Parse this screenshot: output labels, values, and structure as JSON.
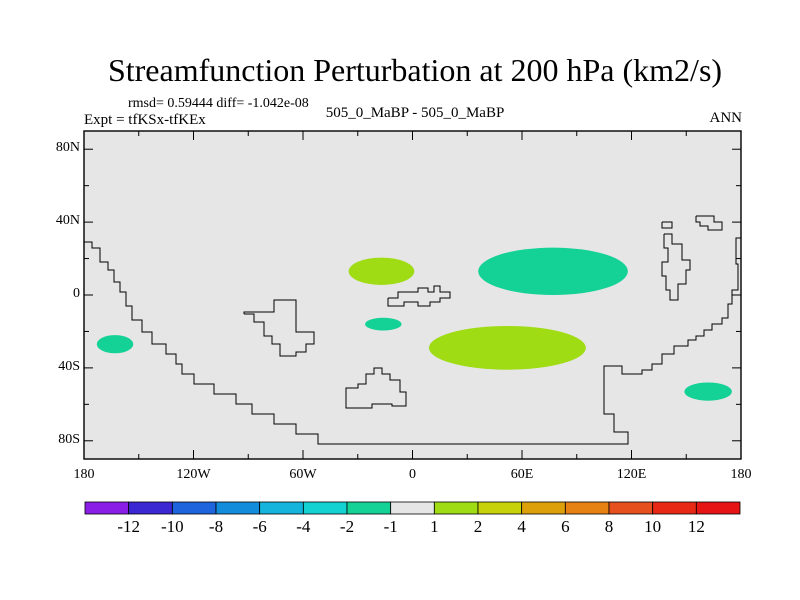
{
  "chart_data": {
    "type": "contour-map",
    "title": "Streamfunction Perturbation at 200 hPa (km2/s)",
    "stats_text": "rmsd= 0.59444 diff= -1.042e-08",
    "experiment_text": "Expt = tfKSx-tfKEx",
    "case_text": "505_0_MaBP - 505_0_MaBP",
    "season": "ANN",
    "x_axis": {
      "range": [
        -180,
        180
      ],
      "ticks": [
        -180,
        -120,
        -60,
        0,
        60,
        120,
        180
      ],
      "labels": [
        "180",
        "120W",
        "60W",
        "0",
        "60E",
        "120E",
        "180"
      ]
    },
    "y_axis": {
      "range": [
        -90,
        90
      ],
      "ticks": [
        -80,
        -40,
        0,
        40,
        80
      ],
      "labels": [
        "80S",
        "40S",
        "0",
        "40N",
        "80N"
      ]
    },
    "background_color": "#e6e6e6",
    "colorbar": {
      "levels": [
        "-12",
        "-10",
        "-8",
        "-6",
        "-4",
        "-2",
        "-1",
        "1",
        "2",
        "4",
        "6",
        "8",
        "10",
        "12"
      ],
      "colors": [
        "#8a1ee6",
        "#3c28d2",
        "#1e64dc",
        "#148cdc",
        "#14b4dc",
        "#14d2d2",
        "#14d296",
        "#e6e6e6",
        "#a0dc14",
        "#c8d20a",
        "#dca00a",
        "#e68214",
        "#e6501e",
        "#e62814",
        "#e61414"
      ]
    },
    "anomaly_regions": [
      {
        "label": "-1",
        "color": "#14d296",
        "center": [
          -163,
          -27
        ],
        "radius": [
          10,
          5
        ]
      },
      {
        "label": "1",
        "color": "#a0dc14",
        "center": [
          -17,
          13
        ],
        "radius": [
          18,
          7.5
        ]
      },
      {
        "label": "-1",
        "color": "#14d296",
        "center": [
          -16,
          -16
        ],
        "radius": [
          10,
          3.5
        ]
      },
      {
        "label": "-1",
        "color": "#14d296",
        "center": [
          77,
          13
        ],
        "radius": [
          41,
          13
        ]
      },
      {
        "label": "1",
        "color": "#a0dc14",
        "center": [
          52,
          -29
        ],
        "radius": [
          43,
          12
        ]
      },
      {
        "label": "-1",
        "color": "#14d296",
        "center": [
          162,
          -53
        ],
        "radius": [
          13,
          5
        ]
      }
    ]
  }
}
